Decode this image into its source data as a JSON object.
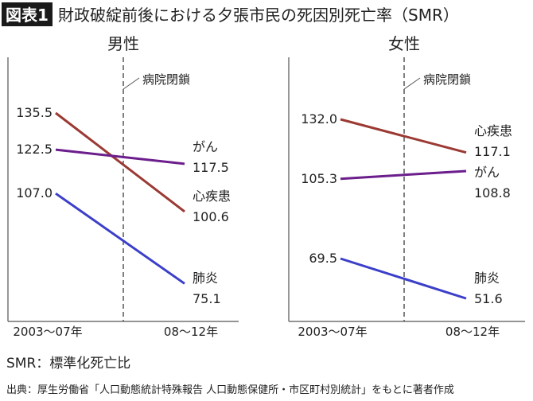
{
  "figure_label": "図表1",
  "title": "財政破綻前後における夕張市民の死因別死亡率（SMR）",
  "note": "SMR：標準化死亡比",
  "source": "出典：厚生労働省「人口動態統計特殊報告  人口動態保健所・市区町村別統計」をもとに著者作成",
  "colors": {
    "心疾患": "#9b3a33",
    "がん": "#6b1e8c",
    "肺炎": "#3b3fc9",
    "label_bg": "#1a1a1a"
  },
  "chart_data": [
    {
      "type": "line",
      "title": "男性",
      "categories": [
        "2003〜07年",
        "08〜12年"
      ],
      "annotation": "病院閉鎖",
      "series": [
        {
          "name": "心疾患",
          "values": [
            135.5,
            100.6
          ]
        },
        {
          "name": "がん",
          "values": [
            122.5,
            117.5
          ]
        },
        {
          "name": "肺炎",
          "values": [
            107.0,
            75.1
          ]
        }
      ]
    },
    {
      "type": "line",
      "title": "女性",
      "categories": [
        "2003〜07年",
        "08〜12年"
      ],
      "annotation": "病院閉鎖",
      "series": [
        {
          "name": "心疾患",
          "values": [
            132.0,
            117.1
          ]
        },
        {
          "name": "がん",
          "values": [
            105.3,
            108.8
          ]
        },
        {
          "name": "肺炎",
          "values": [
            69.5,
            51.6
          ]
        }
      ]
    }
  ]
}
